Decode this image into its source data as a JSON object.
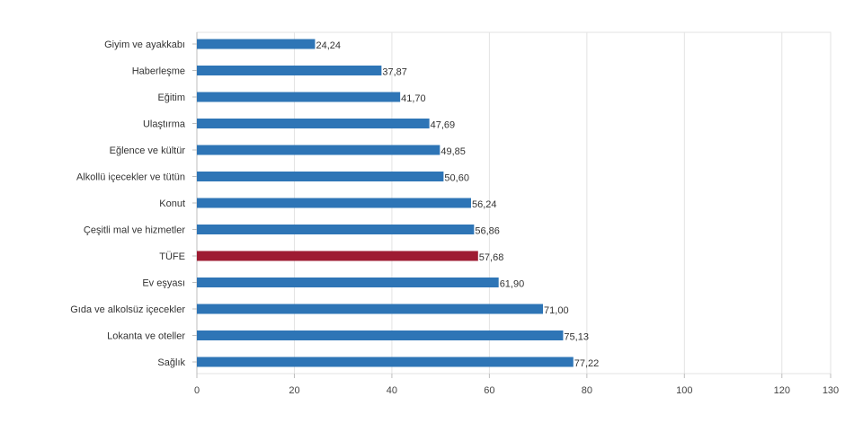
{
  "chart_data": {
    "type": "bar",
    "orientation": "horizontal",
    "title": "",
    "xlabel": "",
    "ylabel": "",
    "xlim": [
      0,
      130
    ],
    "xticks": [
      0,
      20,
      40,
      60,
      80,
      100,
      120,
      130
    ],
    "grid": true,
    "legend": "none",
    "categories": [
      "Giyim ve ayakkabı",
      "Haberleşme",
      "Eğitim",
      "Ulaştırma",
      "Eğlence ve kültür",
      "Alkollü içecekler ve tütün",
      "Konut",
      "Çeşitli mal ve hizmetler",
      "TÜFE",
      "Ev eşyası",
      "Gıda ve alkolsüz içecekler",
      "Lokanta ve oteller",
      "Sağlık"
    ],
    "values": [
      24.24,
      37.87,
      41.7,
      47.69,
      49.85,
      50.6,
      56.24,
      56.86,
      57.68,
      61.9,
      71.0,
      75.13,
      77.22
    ],
    "value_labels": [
      "24,24",
      "37,87",
      "41,70",
      "47,69",
      "49,85",
      "50,60",
      "56,24",
      "56,86",
      "57,68",
      "61,90",
      "71,00",
      "75,13",
      "77,22"
    ],
    "colors": {
      "default_bar": "#2e75b6",
      "highlight_bar": "#9e1b32",
      "grid": "#e3e3e3",
      "axis": "#bdbdbd"
    },
    "highlight_category": "TÜFE"
  }
}
